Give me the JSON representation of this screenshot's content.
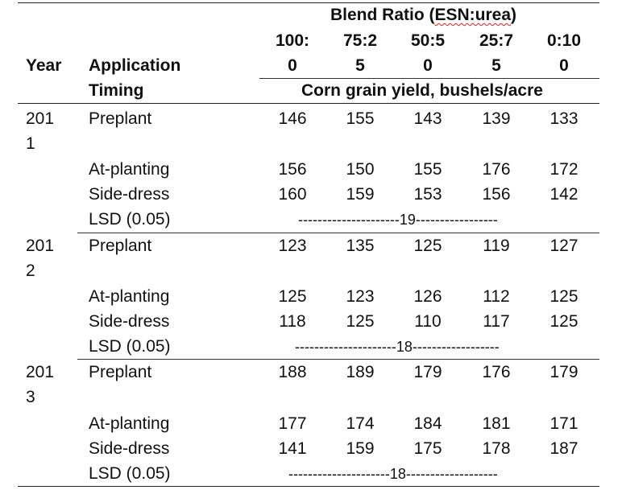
{
  "header": {
    "blend_prefix": "Blend Ratio (",
    "blend_underlined": "ESN:urea",
    "blend_suffix": ")",
    "year": "Year",
    "timing_line1": "Application",
    "timing_line2": "Timing",
    "ratio_cols": [
      {
        "top": "100:",
        "bottom": "0"
      },
      {
        "top": "75:2",
        "bottom": "5"
      },
      {
        "top": "50:5",
        "bottom": "0"
      },
      {
        "top": "25:7",
        "bottom": "5"
      },
      {
        "top": "0:10",
        "bottom": "0"
      }
    ],
    "units": "Corn grain yield, bushels/acre"
  },
  "groups": [
    {
      "year_top": "201",
      "year_bottom": "1",
      "rows": [
        {
          "timing": "Preplant",
          "values": [
            "146",
            "155",
            "143",
            "139",
            "133"
          ]
        },
        {
          "timing": "At-planting",
          "values": [
            "156",
            "150",
            "155",
            "176",
            "172"
          ]
        },
        {
          "timing": "Side-dress",
          "values": [
            "160",
            "159",
            "153",
            "156",
            "142"
          ]
        }
      ],
      "lsd_label": "LSD (0.05)",
      "lsd_value": "---------------------19-----------------"
    },
    {
      "year_top": "201",
      "year_bottom": "2",
      "rows": [
        {
          "timing": "Preplant",
          "values": [
            "123",
            "135",
            "125",
            "119",
            "127"
          ]
        },
        {
          "timing": "At-planting",
          "values": [
            "125",
            "123",
            "126",
            "112",
            "125"
          ]
        },
        {
          "timing": "Side-dress",
          "values": [
            "118",
            "125",
            "110",
            "117",
            "125"
          ]
        }
      ],
      "lsd_label": "LSD (0.05)",
      "lsd_value": "---------------------18------------------"
    },
    {
      "year_top": "201",
      "year_bottom": "3",
      "rows": [
        {
          "timing": "Preplant",
          "values": [
            "188",
            "189",
            "179",
            "176",
            "179"
          ]
        },
        {
          "timing": "At-planting",
          "values": [
            "177",
            "174",
            "184",
            "181",
            "171"
          ]
        },
        {
          "timing": "Side-dress",
          "values": [
            "141",
            "159",
            "175",
            "178",
            "187"
          ]
        }
      ],
      "lsd_label": "LSD (0.05)",
      "lsd_value": "---------------------18-------------------"
    }
  ]
}
